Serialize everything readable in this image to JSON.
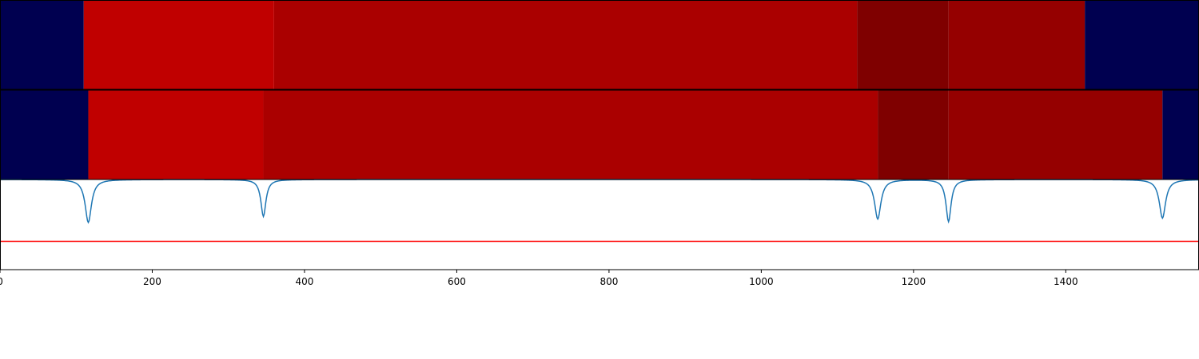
{
  "chart_data": {
    "type": "heatmap",
    "title": "",
    "xlabel": "",
    "ylabel": "",
    "xlim": [
      0,
      1575
    ],
    "xticks": [
      0,
      200,
      400,
      600,
      800,
      1000,
      1200,
      1400
    ],
    "xtick_labels": [
      "0",
      "200",
      "400",
      "600",
      "800",
      "1000",
      "1200",
      "1400"
    ],
    "bands": [
      {
        "segments": [
          {
            "start": 0,
            "end": 110,
            "color": "#000050"
          },
          {
            "start": 110,
            "end": 360,
            "color": "#c00000"
          },
          {
            "start": 360,
            "end": 1126,
            "color": "#aa0000"
          },
          {
            "start": 1126,
            "end": 1246,
            "color": "#7f0000"
          },
          {
            "start": 1246,
            "end": 1425,
            "color": "#950000"
          },
          {
            "start": 1425,
            "end": 1575,
            "color": "#000050"
          }
        ]
      },
      {
        "segments": [
          {
            "start": 0,
            "end": 116,
            "color": "#000050"
          },
          {
            "start": 116,
            "end": 346,
            "color": "#c00000"
          },
          {
            "start": 346,
            "end": 1153,
            "color": "#aa0000"
          },
          {
            "start": 1153,
            "end": 1246,
            "color": "#7f0000"
          },
          {
            "start": 1246,
            "end": 1527,
            "color": "#950000"
          },
          {
            "start": 1527,
            "end": 1575,
            "color": "#000050"
          }
        ]
      }
    ],
    "line_series": {
      "color": "#1f77b4",
      "baseline": 1.0,
      "dips": [
        {
          "x": 116,
          "depth": 0.5,
          "width": 5
        },
        {
          "x": 346,
          "depth": 0.43,
          "width": 4
        },
        {
          "x": 1153,
          "depth": 0.46,
          "width": 5
        },
        {
          "x": 1246,
          "depth": 0.49,
          "width": 4
        },
        {
          "x": 1527,
          "depth": 0.45,
          "width": 5
        }
      ],
      "ylim": [
        -0.05,
        1.0
      ]
    },
    "threshold": {
      "value": 0.28,
      "color": "#ff0000"
    }
  }
}
